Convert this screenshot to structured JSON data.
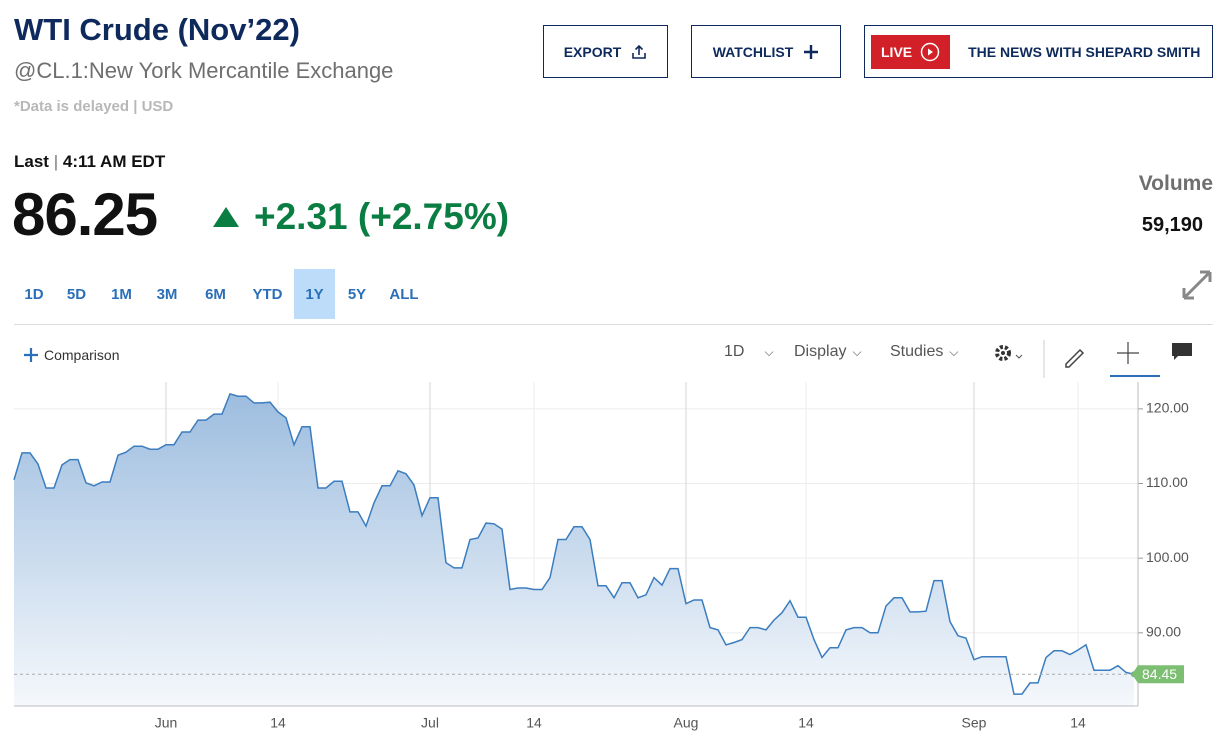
{
  "header": {
    "title": "WTI Crude (Nov’22)",
    "subtitle": "@CL.1:New York Mercantile Exchange",
    "note": "*Data is delayed | USD"
  },
  "buttons": {
    "export": "EXPORT",
    "watchlist": "WATCHLIST",
    "live": "LIVE",
    "show": "THE NEWS WITH SHEPARD SMITH"
  },
  "quote": {
    "last_label": "Last",
    "time": "4:11 AM EDT",
    "price": "86.25",
    "change": "+2.31 (+2.75%)",
    "volume_label": "Volume",
    "volume": "59,190"
  },
  "ranges": [
    "1D",
    "5D",
    "1M",
    "3M",
    "6M",
    "YTD",
    "1Y",
    "5Y",
    "ALL"
  ],
  "selected_range": 6,
  "toolbar": {
    "comparison": "Comparison",
    "interval": "1D",
    "display": "Display",
    "studies": "Studies"
  },
  "chart_data": {
    "type": "area",
    "color": "#3b7dbf",
    "categories": [
      null,
      null,
      null,
      null,
      null,
      null,
      null,
      null,
      null,
      null,
      null,
      null,
      null,
      null,
      null,
      null,
      null,
      null,
      null,
      "Jun",
      null,
      null,
      null,
      null,
      null,
      null,
      null,
      null,
      null,
      null,
      null,
      null,
      null,
      "14",
      null,
      null,
      null,
      null,
      null,
      null,
      null,
      null,
      null,
      null,
      null,
      null,
      null,
      null,
      null,
      null,
      null,
      null,
      "Jul",
      null,
      null,
      null,
      null,
      null,
      null,
      null,
      null,
      null,
      null,
      null,
      null,
      "14",
      null,
      null,
      null,
      null,
      null,
      null,
      null,
      null,
      null,
      null,
      null,
      null,
      null,
      null,
      null,
      null,
      null,
      null,
      "Aug",
      null,
      null,
      null,
      null,
      null,
      null,
      null,
      null,
      null,
      null,
      null,
      null,
      null,
      null,
      "14",
      null,
      null,
      null,
      null,
      null,
      null,
      null,
      null,
      null,
      null,
      null,
      null,
      null,
      null,
      null,
      null,
      null,
      null,
      null,
      null,
      "Sep",
      null,
      null,
      null,
      null,
      null,
      null,
      null,
      null,
      null,
      null,
      null,
      null,
      "14",
      null,
      null,
      null,
      null,
      null,
      null,
      null
    ],
    "values": [
      110.5,
      114.1,
      114.1,
      112.6,
      109.4,
      109.4,
      112.5,
      113.2,
      113.2,
      110.1,
      109.7,
      110.2,
      110.2,
      113.8,
      114.2,
      115.0,
      115.0,
      114.6,
      114.6,
      115.2,
      115.2,
      116.9,
      116.9,
      118.5,
      118.5,
      119.3,
      119.3,
      122.0,
      121.7,
      121.7,
      120.8,
      120.8,
      120.9,
      119.6,
      118.8,
      115.2,
      117.6,
      117.6,
      109.4,
      109.4,
      110.3,
      110.3,
      106.2,
      106.2,
      104.3,
      107.4,
      109.7,
      109.7,
      111.7,
      111.3,
      109.8,
      105.7,
      108.1,
      108.1,
      99.4,
      98.7,
      98.7,
      102.5,
      102.7,
      104.7,
      104.6,
      103.9,
      95.8,
      96.0,
      96.0,
      95.8,
      95.8,
      97.4,
      102.5,
      102.5,
      104.2,
      104.2,
      102.5,
      96.3,
      96.3,
      94.7,
      96.7,
      96.7,
      94.7,
      95.1,
      97.4,
      96.4,
      98.6,
      98.6,
      93.9,
      94.4,
      94.4,
      90.7,
      90.4,
      88.4,
      88.7,
      89.1,
      90.7,
      90.7,
      90.4,
      91.7,
      92.7,
      94.3,
      92.1,
      92.1,
      89.1,
      86.7,
      88.0,
      88.0,
      90.4,
      90.7,
      90.7,
      90.0,
      90.0,
      93.6,
      94.7,
      94.7,
      92.8,
      92.8,
      92.9,
      97.0,
      97.0,
      91.5,
      89.6,
      89.3,
      86.4,
      86.8,
      86.8,
      86.8,
      86.8,
      81.8,
      81.8,
      83.3,
      83.3,
      86.7,
      87.6,
      87.6,
      87.1,
      87.7,
      88.4,
      85.0,
      85.0,
      85.0,
      85.6,
      84.7,
      84.45
    ],
    "ylim": [
      80.2,
      123.6
    ],
    "yticks": [
      {
        "value": 90,
        "label": "90.00"
      },
      {
        "value": 100,
        "label": "100.00"
      },
      {
        "value": 110,
        "label": "110.00"
      },
      {
        "value": 120,
        "label": "120.00"
      }
    ],
    "grid": true
  }
}
